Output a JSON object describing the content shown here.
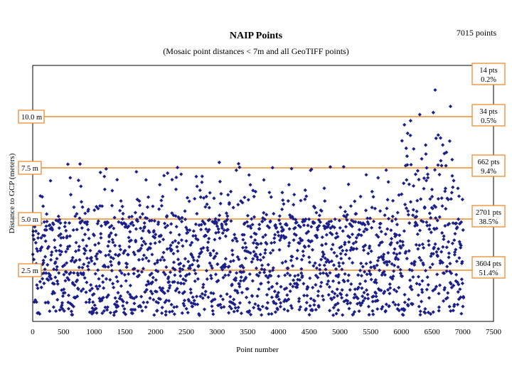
{
  "chart_data": {
    "type": "scatter",
    "title": "NAIP Points",
    "subtitle": "(Mosaic point distances < 7m and all GeoTIFF points)",
    "total_label": "7015 points",
    "xlabel": "Point number",
    "ylabel": "Distance to GCP (meters)",
    "xlim": [
      0,
      7500
    ],
    "x_ticks": [
      "0",
      "500",
      "1000",
      "1500",
      "2000",
      "2500",
      "3000",
      "3500",
      "4000",
      "4500",
      "5000",
      "5500",
      "6000",
      "6500",
      "7000",
      "7500"
    ],
    "ylim": [
      0,
      12.5
    ],
    "grid": false,
    "marker_color": "#1b1f8a",
    "reference_line_color": "#ef8c2e",
    "reference_lines": [
      {
        "y": 2.5,
        "label": "2.5 m"
      },
      {
        "y": 5.0,
        "label": "5.0 m"
      },
      {
        "y": 7.5,
        "label": "7.5 m"
      },
      {
        "y": 10.0,
        "label": "10.0 m"
      }
    ],
    "band_counts": [
      {
        "range": "> 12.5 m",
        "count_label": "14 pts",
        "pct_label": "0.2%"
      },
      {
        "range": "10.0 - 12.5 m",
        "count_label": "34 pts",
        "pct_label": "0.5%"
      },
      {
        "range": "7.5 - 10.0 m",
        "count_label": "662 pts",
        "pct_label": "9.4%"
      },
      {
        "range": "5.0 - 7.5 m",
        "count_label": "2701 pts",
        "pct_label": "38.5%"
      },
      {
        "range": "0 - 2.5 m",
        "count_label": "3604 pts",
        "pct_label": "51.4%"
      }
    ],
    "series": [
      {
        "n_points": 7015,
        "x_range": [
          0,
          7015
        ],
        "distribution": "dense between 0 and ~6 m for all point numbers; sparse to ~7.8 m; outliers up to ~11.2 m concentrated near point numbers 6000-6800",
        "notable_points": [
          {
            "x": 6550,
            "y": 11.3
          },
          {
            "x": 6800,
            "y": 10.5
          },
          {
            "x": 6520,
            "y": 10.2
          },
          {
            "x": 6300,
            "y": 10.1
          },
          {
            "x": 6050,
            "y": 9.6
          },
          {
            "x": 6150,
            "y": 9.8
          },
          {
            "x": 6600,
            "y": 9.1
          },
          {
            "x": 6700,
            "y": 8.2
          }
        ]
      }
    ]
  }
}
